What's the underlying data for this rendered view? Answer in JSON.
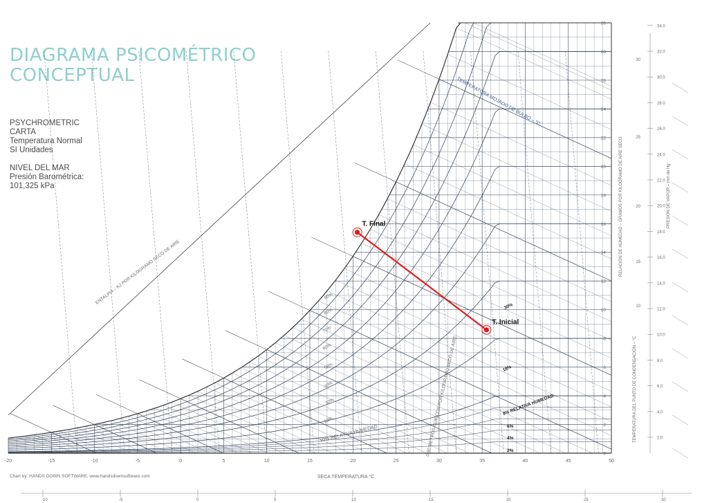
{
  "title": {
    "line1": "DIAGRAMA PSICOMÉTRICO",
    "line2": "CONCEPTUAL"
  },
  "info": {
    "line1": "PSYCHROMETRIC",
    "line2": "CARTA",
    "line3": "Temperatura Normal",
    "line4": "SI Unidades",
    "line5": "NIVEL DEL MAR",
    "line6": "Presión Barométrica:",
    "line7": " 101,325 kPa"
  },
  "chart": {
    "x_axis_label": "SECA TEMPERATURA °C",
    "x_ticks": [
      "-20",
      "-15",
      "-10",
      "-5",
      "0",
      "5",
      "10",
      "15",
      "20",
      "25",
      "30",
      "35",
      "40",
      "45",
      "50"
    ],
    "y_ticks": [
      "0",
      "2",
      "4",
      "6",
      "8",
      "10",
      "12",
      "14",
      "16",
      "18",
      "20",
      "22",
      "24",
      "26",
      "28",
      "30"
    ],
    "rh_labels": [
      "90%",
      "80%",
      "70%",
      "60%",
      "50%",
      "40%",
      "30%",
      "20%"
    ],
    "rh_low_label": "10% RELATIVA HUMEDAD",
    "rh_right_label": "8% RELATIVA HUMEDAD",
    "rh_right_small": [
      "6%",
      "4%",
      "2%"
    ],
    "rh_mid_labels": [
      "30%",
      "18%"
    ],
    "wet_bulb_label": "TEMPERATURA MOJADO DE BULBO – °C",
    "enthalpy_label": "ENTALPIA – KJ POR KILOGRAMO SECO DE AIRE",
    "volume_label": "0.90 METROS CÚBICOS POR KILOGRAMO SECO DE AIRE",
    "humidity_ratio_label": "RELACIÓN DE HUMEDAD – GRAMOS POR KILOGRAMO DE AIRE SECO",
    "dew_point_label": "TEMPERATURA DEL PUNTO DE CONDENSACIÓN – °C",
    "vapor_pressure_label": "PRESIÓN DE VAPOR – mm de Hg",
    "vapor_ticks": [
      "2.0",
      "4.0",
      "6.0",
      "8.0",
      "10.0",
      "12.0",
      "14.0",
      "16.0",
      "18.0",
      "20.0",
      "22.0",
      "24.0",
      "26.0",
      "28.0",
      "30.0",
      "32.0",
      "34.0"
    ],
    "dew_ticks": [
      "10",
      "15",
      "20",
      "25",
      "30"
    ],
    "wet_bulb_ticks": [
      "-10",
      "-5",
      "0",
      "5",
      "10",
      "15",
      "20",
      "25",
      "30"
    ],
    "credit": "Chart by: HANDS DOWN SOFTWARE, www.handsdownsoftware.com",
    "color_line": "#e01b1b",
    "color_grid": "#2c3e57"
  },
  "process": {
    "start_label": "T. Inicial",
    "end_label": "T. Final",
    "start": {
      "t": 35.5,
      "w": 8.6
    },
    "end": {
      "t": 20.5,
      "w": 15.4
    }
  }
}
